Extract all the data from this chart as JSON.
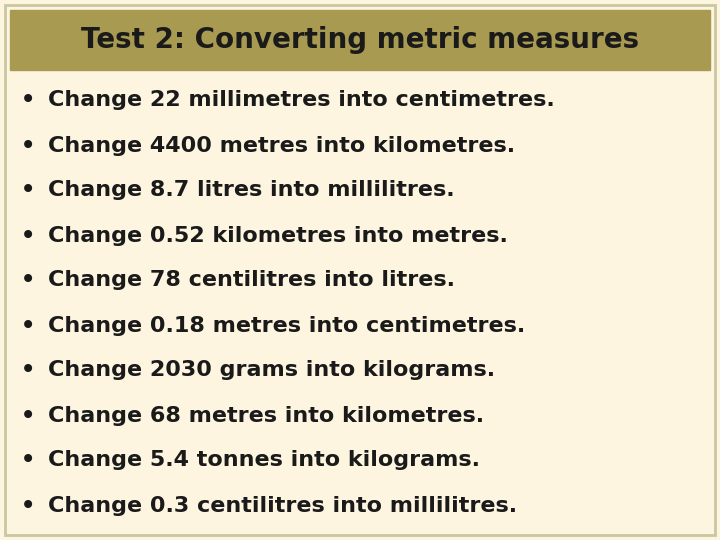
{
  "title": "Test 2: Converting metric measures",
  "title_bg_color": "#a89a50",
  "title_text_color": "#1a1a1a",
  "body_bg_color": "#fdf5e0",
  "border_color": "#c8c8a0",
  "text_color": "#1a1a1a",
  "bullet_color": "#1a1a1a",
  "items": [
    "Change 22 millimetres into centimetres.",
    "Change 4400 metres into kilometres.",
    "Change 8.7 litres into millilitres.",
    "Change 0.52 kilometres into metres.",
    "Change 78 centilitres into litres.",
    "Change 0.18 metres into centimetres.",
    "Change 2030 grams into kilograms.",
    "Change 68 metres into kilometres.",
    "Change 5.4 tonnes into kilograms.",
    "Change 0.3 centilitres into millilitres."
  ],
  "font_family": "DejaVu Sans",
  "title_fontsize": 20,
  "item_fontsize": 16,
  "figsize": [
    7.2,
    5.4
  ],
  "dpi": 100
}
